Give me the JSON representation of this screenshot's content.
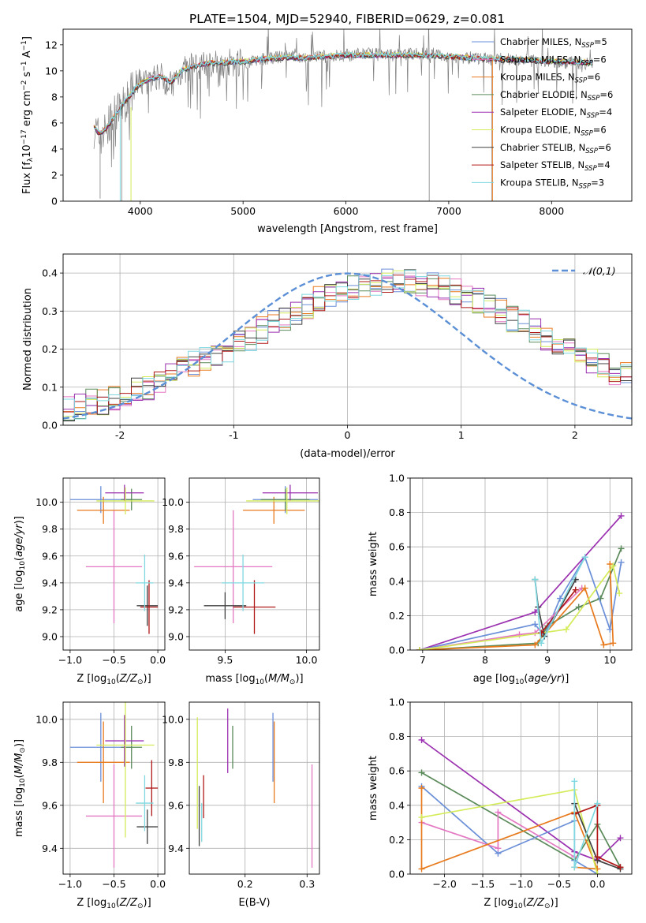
{
  "figure": {
    "title": "PLATE=1504, MJD=52940, FIBERID=0629, z=0.081"
  },
  "chart_data": [
    {
      "id": "spectrum",
      "type": "line",
      "xlabel": "wavelength [Angstrom, rest frame]",
      "ylabel": "Flux [f_λ 10^-17 erg cm^-2 s^-1 A^-1]",
      "xlim": [
        3250,
        8780
      ],
      "ylim": [
        0,
        13.2
      ],
      "xticks": [
        4000,
        5000,
        6000,
        7000,
        8000
      ],
      "yticks": [
        0,
        2,
        4,
        6,
        8,
        10,
        12
      ],
      "legend_position": "upper-right",
      "data_series": {
        "name": "",
        "color": "#808080",
        "x": [
          3550,
          3600,
          3650,
          3700,
          3750,
          3800,
          3850,
          3900,
          3950,
          4000,
          4100,
          4200,
          4300,
          4400,
          4500,
          4600,
          4700,
          4800,
          4900,
          5000,
          5200,
          5400,
          5600,
          5800,
          6000,
          6200,
          6400,
          6600,
          6800,
          7000,
          7200,
          7400,
          7600,
          7800,
          8000,
          8200,
          8400
        ],
        "y": [
          5.6,
          4.9,
          5.3,
          5.8,
          6.6,
          7.0,
          7.5,
          8.2,
          8.6,
          9.0,
          9.4,
          9.6,
          8.9,
          10.0,
          10.3,
          10.5,
          10.5,
          10.6,
          10.7,
          10.6,
          10.9,
          11.1,
          11.0,
          11.1,
          11.2,
          11.3,
          11.2,
          11.3,
          11.3,
          11.1,
          11.0,
          10.9,
          10.9,
          10.8,
          10.7,
          10.6,
          10.6
        ]
      },
      "model_x": [
        3550,
        3600,
        3650,
        3700,
        3750,
        3800,
        3850,
        3900,
        3950,
        4000,
        4100,
        4200,
        4300,
        4400,
        4500,
        4600,
        4700,
        4800,
        4900,
        5000,
        5200,
        5400,
        5600,
        5800,
        6000,
        6200,
        6400,
        6600,
        6800,
        7000,
        7200,
        7400,
        7600,
        7800,
        8000,
        8200,
        8400
      ],
      "model_y": [
        5.7,
        5.2,
        5.4,
        5.9,
        6.5,
        7.1,
        7.6,
        8.1,
        8.6,
        9.0,
        9.4,
        9.6,
        9.1,
        10.0,
        10.3,
        10.5,
        10.6,
        10.6,
        10.7,
        10.7,
        10.9,
        11.0,
        11.0,
        11.1,
        11.2,
        11.2,
        11.2,
        11.2,
        11.2,
        11.1,
        11.0,
        10.9,
        10.9,
        10.8,
        10.7,
        10.7,
        10.6
      ],
      "series": [
        {
          "name": "Chabrier MILES, N",
          "sub": "SSP",
          "suffix": "=5",
          "color": "#6a8fd8"
        },
        {
          "name": "Salpeter MILES, N",
          "sub": "SSP",
          "suffix": "=6",
          "color": "#e377c2"
        },
        {
          "name": "Kroupa MILES, N",
          "sub": "SSP",
          "suffix": "=6",
          "color": "#e87a1e"
        },
        {
          "name": "Chabrier ELODIE, N",
          "sub": "SSP",
          "suffix": "=6",
          "color": "#5a8a5a"
        },
        {
          "name": "Salpeter ELODIE, N",
          "sub": "SSP",
          "suffix": "=4",
          "color": "#9b30b0"
        },
        {
          "name": "Kroupa ELODIE, N",
          "sub": "SSP",
          "suffix": "=6",
          "color": "#d4ec5a"
        },
        {
          "name": "Chabrier STELIB, N",
          "sub": "SSP",
          "suffix": "=6",
          "color": "#404040"
        },
        {
          "name": "Salpeter STELIB, N",
          "sub": "SSP",
          "suffix": "=4",
          "color": "#b01818"
        },
        {
          "name": "Kroupa STELIB, N",
          "sub": "SSP",
          "suffix": "=3",
          "color": "#7fd8e0"
        }
      ]
    },
    {
      "id": "residuals",
      "type": "histogram",
      "xlabel": "(data-model)/error",
      "ylabel": "Normed distribution",
      "xlim": [
        -2.5,
        2.5
      ],
      "ylim": [
        0,
        0.45
      ],
      "xticks": [
        -2,
        -1,
        0,
        1,
        2
      ],
      "ytick_labels": [
        "0.0",
        "0.1",
        "0.2",
        "0.3",
        "0.4"
      ],
      "yticks": [
        0,
        0.1,
        0.2,
        0.3,
        0.4
      ],
      "grid": true,
      "gauss_label": "𝒩(0,1)",
      "gauss_color": "#5b8fd6",
      "bin_edges_start": -2.5,
      "bin_width": 0.1,
      "base": [
        0.04,
        0.05,
        0.06,
        0.06,
        0.07,
        0.08,
        0.09,
        0.1,
        0.12,
        0.13,
        0.15,
        0.16,
        0.17,
        0.19,
        0.2,
        0.22,
        0.23,
        0.25,
        0.27,
        0.28,
        0.3,
        0.31,
        0.33,
        0.34,
        0.35,
        0.36,
        0.37,
        0.37,
        0.38,
        0.38,
        0.38,
        0.37,
        0.37,
        0.36,
        0.35,
        0.34,
        0.33,
        0.31,
        0.3,
        0.28,
        0.27,
        0.25,
        0.23,
        0.22,
        0.2,
        0.19,
        0.17,
        0.16,
        0.14,
        0.13,
        0.12,
        0.1,
        0.09,
        0.08,
        0.07,
        0.07,
        0.06,
        0.05,
        0.05,
        0.04
      ],
      "series_colors": [
        "#6a8fd8",
        "#e377c2",
        "#e87a1e",
        "#5a8a5a",
        "#9b30b0",
        "#d4ec5a",
        "#404040",
        "#b01818",
        "#7fd8e0"
      ]
    },
    {
      "id": "age-vs-Z",
      "type": "errorbar",
      "xlabel": "Z [log10(Z/Z⊙)]",
      "ylabel": "age [log10(age/yr)]",
      "xlim": [
        -1.08,
        0.08
      ],
      "ylim": [
        8.9,
        10.18
      ],
      "xticks": [
        -1.0,
        -0.5,
        0.0
      ],
      "xtick_labels": [
        "−1.0",
        "−0.5",
        "0.0"
      ],
      "yticks": [
        9.0,
        9.2,
        9.4,
        9.6,
        9.8,
        10.0
      ],
      "ytick_labels": [
        "9.0",
        "9.2",
        "9.4",
        "9.6",
        "9.8",
        "10.0"
      ],
      "grid": true,
      "points": [
        {
          "x": -0.65,
          "xerr": 0.35,
          "y": 10.02,
          "yerr": 0.1,
          "color": "#6a8fd8"
        },
        {
          "x": -0.5,
          "xerr": 0.32,
          "y": 9.52,
          "yerr": 0.42,
          "color": "#e377c2"
        },
        {
          "x": -0.62,
          "xerr": 0.3,
          "y": 9.94,
          "yerr": 0.1,
          "color": "#e87a1e"
        },
        {
          "x": -0.3,
          "xerr": 0.12,
          "y": 10.02,
          "yerr": 0.08,
          "color": "#5a8a5a"
        },
        {
          "x": -0.38,
          "xerr": 0.22,
          "y": 10.07,
          "yerr": 0.06,
          "color": "#9b30b0"
        },
        {
          "x": -0.37,
          "xerr": 0.33,
          "y": 10.01,
          "yerr": 0.1,
          "color": "#d4ec5a"
        },
        {
          "x": -0.12,
          "xerr": 0.12,
          "y": 9.23,
          "yerr": 0.15,
          "color": "#404040"
        },
        {
          "x": -0.1,
          "xerr": 0.1,
          "y": 9.22,
          "yerr": 0.2,
          "color": "#b01818"
        },
        {
          "x": -0.15,
          "xerr": 0.1,
          "y": 9.4,
          "yerr": 0.21,
          "color": "#7fd8e0"
        }
      ]
    },
    {
      "id": "age-vs-mass",
      "type": "errorbar",
      "xlabel": "mass [log10(M/M⊙)]",
      "xlim": [
        9.28,
        10.08
      ],
      "ylim": [
        8.9,
        10.18
      ],
      "xticks": [
        9.5,
        10.0
      ],
      "xtick_labels": [
        "9.5",
        "10.0"
      ],
      "yticks": [
        9.0,
        9.2,
        9.4,
        9.6,
        9.8,
        10.0
      ],
      "ytick_labels": [
        "9.0",
        "9.2",
        "9.4",
        "9.6",
        "9.8",
        "10.0"
      ],
      "grid": true,
      "points": [
        {
          "x": 9.87,
          "xerr": 0.2,
          "y": 10.02,
          "yerr": 0.1,
          "color": "#6a8fd8"
        },
        {
          "x": 9.55,
          "xerr": 0.24,
          "y": 9.52,
          "yerr": 0.42,
          "color": "#e377c2"
        },
        {
          "x": 9.8,
          "xerr": 0.19,
          "y": 9.94,
          "yerr": 0.1,
          "color": "#e87a1e"
        },
        {
          "x": 9.87,
          "xerr": 0.15,
          "y": 10.02,
          "yerr": 0.08,
          "color": "#5a8a5a"
        },
        {
          "x": 9.9,
          "xerr": 0.17,
          "y": 10.07,
          "yerr": 0.06,
          "color": "#9b30b0"
        },
        {
          "x": 9.88,
          "xerr": 0.25,
          "y": 10.01,
          "yerr": 0.1,
          "color": "#d4ec5a"
        },
        {
          "x": 9.5,
          "xerr": 0.13,
          "y": 9.23,
          "yerr": 0.1,
          "color": "#404040"
        },
        {
          "x": 9.68,
          "xerr": 0.13,
          "y": 9.22,
          "yerr": 0.2,
          "color": "#b01818"
        },
        {
          "x": 9.61,
          "xerr": 0.13,
          "y": 9.4,
          "yerr": 0.21,
          "color": "#7fd8e0"
        }
      ]
    },
    {
      "id": "mass-weight-vs-age",
      "type": "line",
      "xlabel": "age [log10(age/yr)]",
      "ylabel": "mass weight",
      "xlim": [
        6.8,
        10.35
      ],
      "ylim": [
        0,
        1.0
      ],
      "xticks": [
        7,
        8,
        9,
        10
      ],
      "yticks": [
        0,
        0.2,
        0.4,
        0.6,
        0.8,
        1.0
      ],
      "ytick_labels": [
        "0.0",
        "0.2",
        "0.4",
        "0.6",
        "0.8",
        "1.0"
      ],
      "grid": true,
      "series": [
        {
          "color": "#9b30b0",
          "x": [
            6.95,
            8.8,
            10.18
          ],
          "y": [
            0.0,
            0.22,
            0.78
          ]
        },
        {
          "color": "#5a8a5a",
          "x": [
            6.95,
            8.85,
            9.0,
            9.5,
            9.85,
            10.18
          ],
          "y": [
            0.0,
            0.04,
            0.14,
            0.25,
            0.3,
            0.59
          ]
        },
        {
          "color": "#6a8fd8",
          "x": [
            6.95,
            8.8,
            8.95,
            9.2,
            9.6,
            10.0,
            10.18
          ],
          "y": [
            0.0,
            0.15,
            0.08,
            0.3,
            0.54,
            0.12,
            0.51
          ]
        },
        {
          "color": "#e377c2",
          "x": [
            6.95,
            8.55,
            8.8,
            9.55
          ],
          "y": [
            0.0,
            0.09,
            0.1,
            0.36
          ]
        },
        {
          "color": "#e87a1e",
          "x": [
            6.95,
            8.8,
            9.6,
            9.9,
            10.05,
            10.0
          ],
          "y": [
            0.0,
            0.03,
            0.36,
            0.03,
            0.04,
            0.5
          ]
        },
        {
          "color": "#d4ec5a",
          "x": [
            6.95,
            9.3,
            10.05,
            10.15
          ],
          "y": [
            0.0,
            0.12,
            0.49,
            0.33
          ]
        },
        {
          "color": "#404040",
          "x": [
            8.8,
            8.85,
            8.95,
            9.45
          ],
          "y": [
            0.41,
            0.25,
            0.08,
            0.41
          ]
        },
        {
          "color": "#b01818",
          "x": [
            8.9,
            9.45
          ],
          "y": [
            0.1,
            0.35
          ]
        },
        {
          "color": "#7fd8e0",
          "x": [
            8.8,
            8.9,
            9.6
          ],
          "y": [
            0.41,
            0.04,
            0.54
          ]
        }
      ]
    },
    {
      "id": "mass-vs-Z",
      "type": "errorbar",
      "xlabel": "Z [log10(Z/Z⊙)]",
      "ylabel": "mass [log10(M/M⊙)]",
      "xlim": [
        -1.08,
        0.08
      ],
      "ylim": [
        9.28,
        10.08
      ],
      "xticks": [
        -1.0,
        -0.5,
        0.0
      ],
      "xtick_labels": [
        "−1.0",
        "−0.5",
        "0.0"
      ],
      "yticks": [
        9.4,
        9.6,
        9.8,
        10.0
      ],
      "ytick_labels": [
        "9.4",
        "9.6",
        "9.8",
        "10.0"
      ],
      "grid": true,
      "points": [
        {
          "x": -0.65,
          "xerr": 0.35,
          "y": 9.87,
          "yerr": 0.16,
          "color": "#6a8fd8"
        },
        {
          "x": -0.5,
          "xerr": 0.32,
          "y": 9.55,
          "yerr": 0.24,
          "color": "#e377c2"
        },
        {
          "x": -0.62,
          "xerr": 0.3,
          "y": 9.8,
          "yerr": 0.19,
          "color": "#e87a1e"
        },
        {
          "x": -0.3,
          "xerr": 0.12,
          "y": 9.87,
          "yerr": 0.1,
          "color": "#5a8a5a"
        },
        {
          "x": -0.38,
          "xerr": 0.22,
          "y": 9.9,
          "yerr": 0.12,
          "color": "#9b30b0"
        },
        {
          "x": -0.37,
          "xerr": 0.33,
          "y": 9.88,
          "yerr": 0.43,
          "color": "#d4ec5a"
        },
        {
          "x": -0.12,
          "xerr": 0.12,
          "y": 9.5,
          "yerr": 0.08,
          "color": "#404040"
        },
        {
          "x": -0.07,
          "xerr": 0.07,
          "y": 9.68,
          "yerr": 0.13,
          "color": "#b01818"
        },
        {
          "x": -0.15,
          "xerr": 0.1,
          "y": 9.61,
          "yerr": 0.13,
          "color": "#7fd8e0"
        }
      ]
    },
    {
      "id": "mass-vs-ebv",
      "type": "errorbar",
      "xlabel": "E(B-V)",
      "xlim": [
        0.11,
        0.32
      ],
      "ylim": [
        9.28,
        10.08
      ],
      "xticks": [
        0.2,
        0.3
      ],
      "xtick_labels": [
        "0.2",
        "0.3"
      ],
      "yticks": [
        9.4,
        9.6,
        9.8,
        10.0
      ],
      "ytick_labels": [
        "9.4",
        "9.6",
        "9.8",
        "10.0"
      ],
      "grid": true,
      "points": [
        {
          "x": 0.245,
          "y": 9.87,
          "yerr": 0.16,
          "color": "#6a8fd8"
        },
        {
          "x": 0.308,
          "y": 9.55,
          "yerr": 0.24,
          "color": "#e377c2"
        },
        {
          "x": 0.247,
          "y": 9.8,
          "yerr": 0.19,
          "color": "#e87a1e"
        },
        {
          "x": 0.18,
          "y": 9.87,
          "yerr": 0.1,
          "color": "#5a8a5a"
        },
        {
          "x": 0.172,
          "y": 9.9,
          "yerr": 0.15,
          "color": "#9b30b0"
        },
        {
          "x": 0.123,
          "y": 9.75,
          "yerr": 0.26,
          "color": "#d4ec5a"
        },
        {
          "x": 0.126,
          "y": 9.55,
          "yerr": 0.14,
          "color": "#404040"
        },
        {
          "x": 0.133,
          "y": 9.64,
          "yerr": 0.1,
          "color": "#b01818"
        },
        {
          "x": 0.13,
          "y": 9.52,
          "yerr": 0.09,
          "color": "#7fd8e0"
        }
      ]
    },
    {
      "id": "mass-weight-vs-Z",
      "type": "line",
      "xlabel": "Z [log10(Z/Z⊙)]",
      "ylabel": "mass weight",
      "xlim": [
        -2.45,
        0.45
      ],
      "ylim": [
        0,
        1.0
      ],
      "xticks": [
        -2.0,
        -1.5,
        -1.0,
        -0.5,
        0.0
      ],
      "xtick_labels": [
        "−2.0",
        "−1.5",
        "−1.0",
        "−0.5",
        "0.0"
      ],
      "yticks": [
        0,
        0.2,
        0.4,
        0.6,
        0.8,
        1.0
      ],
      "ytick_labels": [
        "0.0",
        "0.2",
        "0.4",
        "0.6",
        "0.8",
        "1.0"
      ],
      "grid": true,
      "series": [
        {
          "color": "#9b30b0",
          "x": [
            -2.3,
            -0.3,
            0.0,
            0.3
          ],
          "y": [
            0.78,
            0.13,
            0.08,
            0.21
          ]
        },
        {
          "color": "#5a8a5a",
          "x": [
            -2.3,
            -0.3,
            0.0,
            0.3
          ],
          "y": [
            0.59,
            0.08,
            0.29,
            0.04
          ]
        },
        {
          "color": "#6a8fd8",
          "x": [
            -2.3,
            -1.3,
            -0.3,
            -0.3,
            0.0
          ],
          "y": [
            0.51,
            0.12,
            0.31,
            0.08,
            0.0
          ]
        },
        {
          "color": "#e377c2",
          "x": [
            -2.3,
            -1.3,
            -1.3,
            -0.3
          ],
          "y": [
            0.3,
            0.15,
            0.36,
            0.1
          ]
        },
        {
          "color": "#e87a1e",
          "x": [
            -2.3,
            -2.3,
            -0.3,
            0.0,
            -0.3
          ],
          "y": [
            0.5,
            0.03,
            0.36,
            0.03,
            0.04
          ]
        },
        {
          "color": "#d4ec5a",
          "x": [
            -2.3,
            -0.3,
            0.0
          ],
          "y": [
            0.33,
            0.49,
            0.0
          ]
        },
        {
          "color": "#404040",
          "x": [
            -0.3,
            0.0,
            0.3
          ],
          "y": [
            0.41,
            0.08,
            0.03
          ]
        },
        {
          "color": "#b01818",
          "x": [
            -0.3,
            0.0,
            0.0,
            0.3
          ],
          "y": [
            0.35,
            0.4,
            0.1,
            0.04
          ]
        },
        {
          "color": "#7fd8e0",
          "x": [
            -0.3,
            -0.3,
            0.0
          ],
          "y": [
            0.54,
            0.04,
            0.41
          ]
        }
      ]
    }
  ]
}
